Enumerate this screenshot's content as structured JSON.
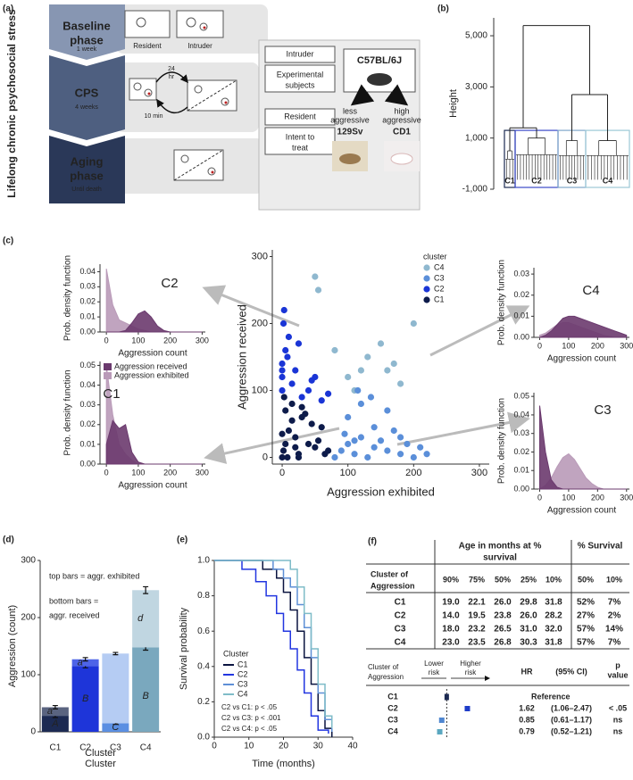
{
  "panel_labels": [
    "(a)",
    "(b)",
    "(c)",
    "(d)",
    "(e)",
    "(f)"
  ],
  "diagram": {
    "side_label": "Lifelong chronic psychosocial stress",
    "phases": [
      {
        "name": [
          "Baseline",
          "phase"
        ],
        "duration": "1 week"
      },
      {
        "name": [
          "CPS"
        ],
        "duration": "4 weeks"
      },
      {
        "name": [
          "Aging",
          "phase"
        ],
        "duration": "Until death"
      }
    ],
    "cage_labels": [
      "Resident",
      "Intruder"
    ],
    "cps_labels": [
      "24",
      "hr",
      "10 min"
    ],
    "design": {
      "rows": [
        [
          "Intruder"
        ],
        [
          "Experimental",
          "subjects"
        ],
        [
          "Resident"
        ],
        [
          "Intent to",
          "treat"
        ]
      ],
      "strain": "C57BL/6J",
      "resident_strains": [
        {
          "label": [
            "less",
            "aggressive"
          ],
          "name": "129Sv"
        },
        {
          "label": [
            "high",
            "aggressive"
          ],
          "name": "CD1"
        }
      ]
    }
  },
  "chart_data": [
    {
      "type": "dendrogram",
      "ylabel": "Height",
      "ylim": [
        -1000,
        5700
      ],
      "yticks": [
        {
          "value": -1000,
          "label": "-1,000"
        },
        {
          "value": 1000,
          "label": "1,000"
        },
        {
          "value": 3000,
          "label": "3,000"
        },
        {
          "value": 5000,
          "label": "5,000"
        }
      ],
      "clusters": [
        {
          "name": "C1",
          "height": 500,
          "color": "#1c2a52"
        },
        {
          "name": "C2",
          "height": 1000,
          "color": "#3b4ac8"
        },
        {
          "name": "C3",
          "height": 900,
          "color": "#7fa7c9"
        },
        {
          "name": "C4",
          "height": 900,
          "color": "#9cc8d6"
        }
      ],
      "pair_heights": [
        1400,
        2700
      ],
      "root_height": 5400
    },
    {
      "type": "scatter",
      "xlabel": "Aggression exhibited",
      "ylabel": "Aggression received",
      "legend_title": "cluster",
      "xlim": [
        -15,
        315
      ],
      "ylim": [
        -10,
        310
      ],
      "xticks": [
        0,
        100,
        200,
        300
      ],
      "yticks": [
        0,
        100,
        200,
        300
      ],
      "series": [
        {
          "name": "C4",
          "color": "#8fb8cf",
          "x": [
            50,
            55,
            130,
            150,
            120,
            170,
            200,
            80,
            100,
            160,
            180,
            110
          ],
          "values": [
            270,
            250,
            150,
            170,
            130,
            140,
            200,
            160,
            120,
            130,
            110,
            100
          ]
        },
        {
          "name": "C3",
          "color": "#5b8fd9",
          "x": [
            80,
            90,
            100,
            110,
            120,
            130,
            140,
            150,
            160,
            170,
            180,
            190,
            200,
            210,
            220,
            100,
            120,
            140,
            160,
            95,
            115,
            135,
            180,
            110
          ],
          "values": [
            0,
            10,
            20,
            5,
            30,
            0,
            15,
            25,
            10,
            40,
            5,
            20,
            0,
            15,
            5,
            60,
            80,
            45,
            70,
            35,
            100,
            90,
            30,
            25
          ]
        },
        {
          "name": "C2",
          "color": "#1a35d6",
          "x": [
            0,
            0,
            0,
            5,
            10,
            2,
            15,
            20,
            30,
            40,
            50,
            60,
            70,
            8,
            3,
            25,
            45,
            0
          ],
          "values": [
            100,
            120,
            140,
            160,
            180,
            200,
            110,
            130,
            90,
            100,
            120,
            85,
            95,
            150,
            220,
            170,
            115,
            130
          ]
        },
        {
          "name": "C1",
          "color": "#0d1b4a",
          "x": [
            0,
            2,
            5,
            10,
            15,
            20,
            25,
            30,
            40,
            50,
            60,
            70,
            5,
            15,
            30,
            45,
            0,
            8,
            20,
            35,
            55,
            65,
            3,
            25
          ],
          "values": [
            0,
            10,
            20,
            40,
            55,
            30,
            5,
            60,
            20,
            15,
            45,
            10,
            70,
            80,
            75,
            50,
            35,
            0,
            15,
            65,
            25,
            5,
            90,
            0
          ]
        }
      ]
    },
    {
      "type": "density",
      "title": "C2",
      "xlabel": "Aggression count",
      "ylabel": "Prob. density function",
      "xlim": [
        -20,
        310
      ],
      "ylim": [
        0,
        0.045
      ],
      "xticks": [
        0,
        100,
        200,
        300
      ],
      "yticks": [
        {
          "value": 0,
          "label": "0.00"
        },
        {
          "value": 0.01,
          "label": "0.01"
        },
        {
          "value": 0.02,
          "label": "0.02"
        },
        {
          "value": 0.03,
          "label": "0.03"
        },
        {
          "value": 0.04,
          "label": "0.04"
        }
      ],
      "x": [
        0,
        20,
        40,
        60,
        80,
        100,
        120,
        140,
        160,
        180,
        200,
        220,
        240,
        260,
        280,
        300
      ],
      "series": [
        {
          "color": "#6b3a6e",
          "values": [
            0,
            0,
            0,
            0.001,
            0.006,
            0.012,
            0.014,
            0.01,
            0.004,
            0.001,
            0,
            0,
            0,
            0,
            0,
            0
          ]
        },
        {
          "color": "#b99ab8",
          "values": [
            0.042,
            0.018,
            0.008,
            0.006,
            0.004,
            0.002,
            0.001,
            0,
            0,
            0,
            0,
            0,
            0,
            0,
            0,
            0
          ]
        }
      ]
    },
    {
      "type": "density",
      "title": "C1",
      "xlabel": "Aggression count",
      "ylabel": "Prob. density function",
      "xlim": [
        -20,
        310
      ],
      "ylim": [
        0,
        0.052
      ],
      "xticks": [
        0,
        100,
        200,
        300
      ],
      "yticks": [
        {
          "value": 0,
          "label": "0.00"
        },
        {
          "value": 0.01,
          "label": "0.01"
        },
        {
          "value": 0.02,
          "label": "0.02"
        },
        {
          "value": 0.03,
          "label": "0.03"
        },
        {
          "value": 0.04,
          "label": "0.04"
        },
        {
          "value": 0.05,
          "label": "0.05"
        }
      ],
      "x": [
        0,
        20,
        40,
        60,
        80,
        100,
        120,
        140,
        160,
        180,
        200,
        220,
        240,
        260,
        280,
        300
      ],
      "legend": true,
      "series": [
        {
          "name": "Aggression received",
          "color": "#6b3a6e",
          "values": [
            0.01,
            0.022,
            0.018,
            0.02,
            0.006,
            0.001,
            0,
            0,
            0,
            0,
            0,
            0,
            0,
            0,
            0,
            0
          ]
        },
        {
          "name": "Aggression exhibited",
          "color": "#b99ab8",
          "values": [
            0.05,
            0.025,
            0.01,
            0.005,
            0.002,
            0,
            0,
            0,
            0,
            0,
            0,
            0,
            0,
            0,
            0,
            0
          ]
        }
      ]
    },
    {
      "type": "density",
      "title": "C4",
      "xlabel": "Aggression count",
      "ylabel": "Prob. density function",
      "xlim": [
        -20,
        310
      ],
      "ylim": [
        0,
        0.033
      ],
      "xticks": [
        0,
        100,
        200,
        300
      ],
      "yticks": [
        {
          "value": 0,
          "label": "0.00"
        },
        {
          "value": 0.01,
          "label": "0.01"
        },
        {
          "value": 0.02,
          "label": "0.02"
        },
        {
          "value": 0.03,
          "label": "0.03"
        }
      ],
      "x": [
        0,
        20,
        40,
        60,
        80,
        100,
        120,
        140,
        160,
        180,
        200,
        220,
        240,
        260,
        280,
        300
      ],
      "series": [
        {
          "color": "#6b3a6e",
          "values": [
            0,
            0.001,
            0.003,
            0.006,
            0.009,
            0.01,
            0.01,
            0.009,
            0.008,
            0.007,
            0.006,
            0.005,
            0.004,
            0.003,
            0.002,
            0.001
          ]
        },
        {
          "color": "#b99ab8",
          "values": [
            0.001,
            0.002,
            0.004,
            0.006,
            0.007,
            0.007,
            0.006,
            0.005,
            0.004,
            0.003,
            0.002,
            0.001,
            0.0005,
            0,
            0,
            0
          ]
        }
      ]
    },
    {
      "type": "density",
      "title": "C3",
      "xlabel": "Aggression count",
      "ylabel": "Prob. density function",
      "xlim": [
        -20,
        310
      ],
      "ylim": [
        0,
        0.052
      ],
      "xticks": [
        0,
        100,
        200,
        300
      ],
      "yticks": [
        {
          "value": 0,
          "label": "0.00"
        },
        {
          "value": 0.01,
          "label": "0.01"
        },
        {
          "value": 0.02,
          "label": "0.02"
        },
        {
          "value": 0.03,
          "label": "0.03"
        },
        {
          "value": 0.04,
          "label": "0.04"
        },
        {
          "value": 0.05,
          "label": "0.05"
        }
      ],
      "x": [
        0,
        20,
        40,
        60,
        80,
        100,
        120,
        140,
        160,
        180,
        200,
        220,
        240,
        260,
        280,
        300
      ],
      "series": [
        {
          "color": "#6b3a6e",
          "values": [
            0.045,
            0.02,
            0.005,
            0.001,
            0,
            0,
            0,
            0,
            0,
            0,
            0,
            0,
            0,
            0,
            0,
            0
          ]
        },
        {
          "color": "#b99ab8",
          "values": [
            0,
            0.002,
            0.006,
            0.012,
            0.017,
            0.019,
            0.016,
            0.011,
            0.006,
            0.003,
            0.001,
            0,
            0,
            0,
            0,
            0
          ]
        }
      ]
    },
    {
      "type": "stacked_bar",
      "xlabel": "Cluster",
      "ylabel": "Aggression (count)",
      "annotations": [
        "top bars = aggr. exhibited",
        "bottom bars =",
        "aggr. received"
      ],
      "categories": [
        "C1",
        "C2",
        "C3",
        "C4"
      ],
      "ylim": [
        0,
        300
      ],
      "yticks": [
        0,
        100,
        200,
        300
      ],
      "series": [
        {
          "colors": [
            "#1c2a52",
            "#1e35d9",
            "#5b8fe2",
            "#7aa8be"
          ],
          "values": [
            28,
            115,
            15,
            148
          ],
          "errors": [
            3,
            3,
            2,
            5
          ],
          "letters": [
            "A",
            "B",
            "C",
            "B"
          ]
        },
        {
          "colors": [
            "#5a6480",
            "#4e64e8",
            "#b5ccf3",
            "#c0d6e1"
          ],
          "values": [
            15,
            12,
            122,
            100
          ],
          "errors": [
            3,
            3,
            2,
            6
          ],
          "letters": [
            "a",
            "a",
            null,
            "d"
          ]
        }
      ]
    },
    {
      "type": "step",
      "xlabel": "Time (months)",
      "ylabel": "Survival probability",
      "legend_title": "Cluster",
      "xlim": [
        0,
        40
      ],
      "ylim": [
        0,
        1
      ],
      "xticks": [
        0,
        10,
        20,
        30,
        40
      ],
      "yticks": [
        {
          "value": 0,
          "label": "0.0"
        },
        {
          "value": 0.2,
          "label": "0.2"
        },
        {
          "value": 0.4,
          "label": "0.4"
        },
        {
          "value": 0.6,
          "label": "0.6"
        },
        {
          "value": 0.8,
          "label": "0.8"
        },
        {
          "value": 1,
          "label": "1.0"
        }
      ],
      "annotations": [
        "C2 vs C1: p < .05",
        "C2 vs C3: p < .001",
        "C2 vs C4: p < .05"
      ],
      "series": [
        {
          "name": "C1",
          "color": "#0b1440",
          "x": [
            0,
            14,
            18,
            20,
            22,
            24,
            26,
            28,
            30,
            32,
            34
          ],
          "values": [
            1,
            0.95,
            0.9,
            0.82,
            0.72,
            0.6,
            0.45,
            0.3,
            0.15,
            0.05,
            0
          ]
        },
        {
          "name": "C2",
          "color": "#2236e0",
          "x": [
            0,
            8,
            12,
            15,
            18,
            20,
            22,
            24,
            26,
            28,
            30,
            33
          ],
          "values": [
            1,
            0.95,
            0.88,
            0.8,
            0.7,
            0.6,
            0.5,
            0.38,
            0.25,
            0.12,
            0.04,
            0.02
          ]
        },
        {
          "name": "C3",
          "color": "#5e8fd6",
          "x": [
            0,
            17,
            20,
            22,
            24,
            26,
            28,
            30,
            32,
            34
          ],
          "values": [
            1,
            0.95,
            0.9,
            0.85,
            0.75,
            0.62,
            0.45,
            0.25,
            0.1,
            0.03
          ]
        },
        {
          "name": "C4",
          "color": "#7fbcc8",
          "x": [
            0,
            22,
            24,
            26,
            28,
            30,
            32,
            34
          ],
          "values": [
            1,
            0.95,
            0.85,
            0.7,
            0.5,
            0.3,
            0.12,
            0.05
          ]
        }
      ]
    }
  ],
  "table": {
    "group_headers": [
      [
        "Age in months at %",
        "survival"
      ],
      [
        "% Survival"
      ]
    ],
    "row_header": [
      "Cluster of",
      "Aggression"
    ],
    "columns": [
      "90%",
      "75%",
      "50%",
      "25%",
      "10%",
      "50%",
      "10%"
    ],
    "rows": [
      {
        "cluster": "C1",
        "color": "#1c2a52",
        "cells": [
          "19.0",
          "22.1",
          "26.0",
          "29.8",
          "31.8",
          "52%",
          "7%"
        ]
      },
      {
        "cluster": "C2",
        "color": "#1e3cc8",
        "cells": [
          "14.0",
          "19.5",
          "23.8",
          "26.0",
          "28.2",
          "27%",
          "2%"
        ]
      },
      {
        "cluster": "C3",
        "color": "#4f86d0",
        "cells": [
          "18.0",
          "23.2",
          "26.5",
          "31.0",
          "32.0",
          "57%",
          "14%"
        ]
      },
      {
        "cluster": "C4",
        "color": "#5aa7c0",
        "cells": [
          "23.0",
          "23.5",
          "26.8",
          "30.3",
          "31.8",
          "57%",
          "7%"
        ]
      }
    ]
  },
  "forest": {
    "row_header": [
      "Cluster of",
      "Aggression"
    ],
    "lower": [
      "Lower",
      "risk"
    ],
    "higher": [
      "Higher",
      "risk"
    ],
    "hr_header": "HR",
    "ci_header": "(95% CI)",
    "p_header": [
      "p",
      "value"
    ],
    "hr_lim": [
      0.4,
      2.6
    ],
    "reference": 1,
    "rows": [
      {
        "cluster": "C1",
        "color": "#1c2a52",
        "note": "Reference"
      },
      {
        "cluster": "C2",
        "color": "#1e3cc8",
        "hr": 1.62,
        "ci": "(1.06–2.47)",
        "p": "< .05"
      },
      {
        "cluster": "C3",
        "color": "#4f86d0",
        "hr": 0.85,
        "ci": "(0.61–1.17)",
        "p": "ns"
      },
      {
        "cluster": "C4",
        "color": "#5aa7c0",
        "hr": 0.79,
        "ci": "(0.52–1.21)",
        "p": "ns"
      }
    ]
  }
}
